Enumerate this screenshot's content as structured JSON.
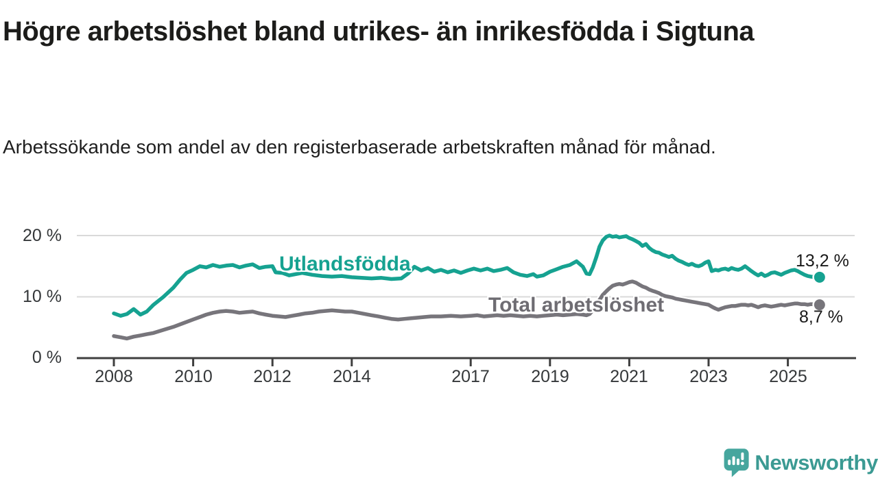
{
  "title": "Högre arbetslöshet bland utrikes- än inrikesfödda i Sigtuna",
  "subtitle": "Arbetssökande som andel av den registerbaserade arbetskraften månad för månad.",
  "branding": {
    "logo_text": "Newsworthy",
    "logo_color": "#46a69e",
    "logo_text_color": "#3b9a93"
  },
  "chart_data": {
    "type": "line",
    "title": "Högre arbetslöshet bland utrikes- än inrikesfödda i Sigtuna",
    "subtitle": "Arbetssökande som andel av den registerbaserade arbetskraften månad för månad.",
    "grid": "horizontal",
    "legend_position": "inline-labels",
    "xlim": [
      2007.1,
      2026.7
    ],
    "ylim": [
      0,
      21
    ],
    "x_axis": {
      "labels": [
        "2008",
        "2010",
        "2012",
        "2014",
        "2017",
        "2019",
        "2021",
        "2023",
        "2025"
      ],
      "values": [
        2008,
        2010,
        2012,
        2014,
        2017,
        2019,
        2021,
        2023,
        2025
      ]
    },
    "y_axis": {
      "labels": [
        "0 %",
        "10 %",
        "20 %"
      ],
      "values": [
        0,
        10,
        20
      ]
    },
    "axis_color": "#3f3f3f",
    "gridline_color": "#d9d9d9",
    "series": [
      {
        "name": "Utlandsfödda",
        "color": "#16a291",
        "end_label": "13,2 %",
        "end_value": 13.2,
        "points": [
          [
            2008.0,
            7.3
          ],
          [
            2008.17,
            6.9
          ],
          [
            2008.33,
            7.2
          ],
          [
            2008.5,
            8.0
          ],
          [
            2008.67,
            7.1
          ],
          [
            2008.83,
            7.6
          ],
          [
            2009.0,
            8.7
          ],
          [
            2009.25,
            10.0
          ],
          [
            2009.5,
            11.5
          ],
          [
            2009.67,
            12.8
          ],
          [
            2009.83,
            13.9
          ],
          [
            2010.0,
            14.4
          ],
          [
            2010.17,
            15.0
          ],
          [
            2010.33,
            14.8
          ],
          [
            2010.5,
            15.2
          ],
          [
            2010.67,
            14.9
          ],
          [
            2010.83,
            15.1
          ],
          [
            2011.0,
            15.2
          ],
          [
            2011.17,
            14.8
          ],
          [
            2011.33,
            15.1
          ],
          [
            2011.5,
            15.3
          ],
          [
            2011.67,
            14.7
          ],
          [
            2011.83,
            14.9
          ],
          [
            2012.0,
            15.0
          ],
          [
            2012.08,
            14.0
          ],
          [
            2012.25,
            13.9
          ],
          [
            2012.42,
            13.5
          ],
          [
            2012.58,
            13.7
          ],
          [
            2012.75,
            13.9
          ],
          [
            2013.0,
            13.6
          ],
          [
            2013.25,
            13.4
          ],
          [
            2013.5,
            13.3
          ],
          [
            2013.75,
            13.4
          ],
          [
            2014.0,
            13.2
          ],
          [
            2014.25,
            13.1
          ],
          [
            2014.5,
            13.0
          ],
          [
            2014.75,
            13.1
          ],
          [
            2015.0,
            12.9
          ],
          [
            2015.25,
            13.0
          ],
          [
            2015.42,
            13.8
          ],
          [
            2015.58,
            14.9
          ],
          [
            2015.75,
            14.3
          ],
          [
            2015.92,
            14.7
          ],
          [
            2016.08,
            14.1
          ],
          [
            2016.25,
            14.4
          ],
          [
            2016.42,
            14.0
          ],
          [
            2016.58,
            14.3
          ],
          [
            2016.75,
            13.9
          ],
          [
            2016.92,
            14.3
          ],
          [
            2017.08,
            14.6
          ],
          [
            2017.25,
            14.3
          ],
          [
            2017.42,
            14.6
          ],
          [
            2017.58,
            14.2
          ],
          [
            2017.75,
            14.4
          ],
          [
            2017.92,
            14.7
          ],
          [
            2018.08,
            14.0
          ],
          [
            2018.25,
            13.6
          ],
          [
            2018.42,
            13.4
          ],
          [
            2018.58,
            13.7
          ],
          [
            2018.67,
            13.3
          ],
          [
            2018.83,
            13.5
          ],
          [
            2019.0,
            14.1
          ],
          [
            2019.17,
            14.5
          ],
          [
            2019.33,
            14.9
          ],
          [
            2019.5,
            15.2
          ],
          [
            2019.67,
            15.8
          ],
          [
            2019.83,
            14.9
          ],
          [
            2019.92,
            13.8
          ],
          [
            2020.0,
            13.7
          ],
          [
            2020.08,
            14.8
          ],
          [
            2020.17,
            16.5
          ],
          [
            2020.25,
            18.2
          ],
          [
            2020.33,
            19.2
          ],
          [
            2020.42,
            19.8
          ],
          [
            2020.5,
            20.0
          ],
          [
            2020.58,
            19.8
          ],
          [
            2020.67,
            19.9
          ],
          [
            2020.75,
            19.7
          ],
          [
            2020.83,
            19.8
          ],
          [
            2020.92,
            19.9
          ],
          [
            2021.0,
            19.6
          ],
          [
            2021.08,
            19.4
          ],
          [
            2021.17,
            19.1
          ],
          [
            2021.25,
            18.8
          ],
          [
            2021.33,
            18.3
          ],
          [
            2021.42,
            18.6
          ],
          [
            2021.5,
            18.0
          ],
          [
            2021.58,
            17.6
          ],
          [
            2021.67,
            17.3
          ],
          [
            2021.75,
            17.2
          ],
          [
            2021.83,
            16.9
          ],
          [
            2021.92,
            16.7
          ],
          [
            2022.0,
            16.5
          ],
          [
            2022.08,
            16.7
          ],
          [
            2022.17,
            16.2
          ],
          [
            2022.25,
            15.9
          ],
          [
            2022.33,
            15.7
          ],
          [
            2022.42,
            15.4
          ],
          [
            2022.5,
            15.2
          ],
          [
            2022.58,
            15.4
          ],
          [
            2022.67,
            15.1
          ],
          [
            2022.75,
            15.0
          ],
          [
            2022.83,
            15.2
          ],
          [
            2022.92,
            15.6
          ],
          [
            2023.0,
            15.8
          ],
          [
            2023.08,
            14.2
          ],
          [
            2023.17,
            14.4
          ],
          [
            2023.25,
            14.3
          ],
          [
            2023.33,
            14.5
          ],
          [
            2023.42,
            14.6
          ],
          [
            2023.5,
            14.4
          ],
          [
            2023.58,
            14.7
          ],
          [
            2023.67,
            14.5
          ],
          [
            2023.75,
            14.4
          ],
          [
            2023.83,
            14.6
          ],
          [
            2023.92,
            15.0
          ],
          [
            2024.0,
            14.6
          ],
          [
            2024.08,
            14.2
          ],
          [
            2024.17,
            13.8
          ],
          [
            2024.25,
            13.5
          ],
          [
            2024.33,
            13.8
          ],
          [
            2024.42,
            13.4
          ],
          [
            2024.5,
            13.6
          ],
          [
            2024.58,
            13.9
          ],
          [
            2024.67,
            14.0
          ],
          [
            2024.75,
            13.8
          ],
          [
            2024.83,
            13.6
          ],
          [
            2024.92,
            13.9
          ],
          [
            2025.0,
            14.1
          ],
          [
            2025.08,
            14.3
          ],
          [
            2025.17,
            14.4
          ],
          [
            2025.25,
            14.2
          ],
          [
            2025.33,
            13.9
          ],
          [
            2025.42,
            13.6
          ],
          [
            2025.5,
            13.4
          ],
          [
            2025.58,
            13.3
          ],
          [
            2025.7,
            13.2
          ],
          [
            2025.8,
            13.2
          ]
        ]
      },
      {
        "name": "Total arbetslöshet",
        "color": "#77757b",
        "end_label": "8,7 %",
        "end_value": 8.7,
        "points": [
          [
            2008.0,
            3.6
          ],
          [
            2008.17,
            3.4
          ],
          [
            2008.33,
            3.2
          ],
          [
            2008.5,
            3.5
          ],
          [
            2008.67,
            3.7
          ],
          [
            2008.83,
            3.9
          ],
          [
            2009.0,
            4.1
          ],
          [
            2009.25,
            4.6
          ],
          [
            2009.5,
            5.1
          ],
          [
            2009.75,
            5.7
          ],
          [
            2010.0,
            6.3
          ],
          [
            2010.17,
            6.7
          ],
          [
            2010.33,
            7.1
          ],
          [
            2010.5,
            7.4
          ],
          [
            2010.67,
            7.6
          ],
          [
            2010.83,
            7.7
          ],
          [
            2011.0,
            7.6
          ],
          [
            2011.17,
            7.4
          ],
          [
            2011.33,
            7.5
          ],
          [
            2011.5,
            7.6
          ],
          [
            2011.67,
            7.3
          ],
          [
            2011.83,
            7.1
          ],
          [
            2012.0,
            6.9
          ],
          [
            2012.17,
            6.8
          ],
          [
            2012.33,
            6.7
          ],
          [
            2012.5,
            6.9
          ],
          [
            2012.67,
            7.1
          ],
          [
            2012.83,
            7.3
          ],
          [
            2013.0,
            7.4
          ],
          [
            2013.17,
            7.6
          ],
          [
            2013.33,
            7.7
          ],
          [
            2013.5,
            7.8
          ],
          [
            2013.67,
            7.7
          ],
          [
            2013.83,
            7.6
          ],
          [
            2014.0,
            7.6
          ],
          [
            2014.17,
            7.4
          ],
          [
            2014.33,
            7.2
          ],
          [
            2014.5,
            7.0
          ],
          [
            2014.67,
            6.8
          ],
          [
            2014.83,
            6.6
          ],
          [
            2015.0,
            6.4
          ],
          [
            2015.17,
            6.3
          ],
          [
            2015.33,
            6.4
          ],
          [
            2015.5,
            6.5
          ],
          [
            2015.67,
            6.6
          ],
          [
            2015.83,
            6.7
          ],
          [
            2016.0,
            6.8
          ],
          [
            2016.25,
            6.8
          ],
          [
            2016.5,
            6.9
          ],
          [
            2016.75,
            6.8
          ],
          [
            2017.0,
            6.9
          ],
          [
            2017.17,
            7.0
          ],
          [
            2017.33,
            6.8
          ],
          [
            2017.5,
            6.9
          ],
          [
            2017.67,
            7.0
          ],
          [
            2017.83,
            6.9
          ],
          [
            2018.0,
            7.0
          ],
          [
            2018.17,
            6.9
          ],
          [
            2018.33,
            6.8
          ],
          [
            2018.5,
            6.9
          ],
          [
            2018.67,
            6.8
          ],
          [
            2018.83,
            6.9
          ],
          [
            2019.0,
            7.0
          ],
          [
            2019.17,
            7.1
          ],
          [
            2019.33,
            7.0
          ],
          [
            2019.5,
            7.1
          ],
          [
            2019.67,
            7.2
          ],
          [
            2019.83,
            7.1
          ],
          [
            2019.92,
            7.0
          ],
          [
            2020.0,
            7.2
          ],
          [
            2020.08,
            7.8
          ],
          [
            2020.17,
            8.6
          ],
          [
            2020.25,
            9.5
          ],
          [
            2020.33,
            10.3
          ],
          [
            2020.42,
            10.9
          ],
          [
            2020.5,
            11.4
          ],
          [
            2020.58,
            11.8
          ],
          [
            2020.67,
            12.0
          ],
          [
            2020.75,
            12.1
          ],
          [
            2020.83,
            12.0
          ],
          [
            2020.92,
            12.2
          ],
          [
            2021.0,
            12.4
          ],
          [
            2021.08,
            12.5
          ],
          [
            2021.17,
            12.3
          ],
          [
            2021.25,
            12.0
          ],
          [
            2021.33,
            11.7
          ],
          [
            2021.42,
            11.5
          ],
          [
            2021.5,
            11.2
          ],
          [
            2021.58,
            11.0
          ],
          [
            2021.67,
            10.8
          ],
          [
            2021.75,
            10.6
          ],
          [
            2021.83,
            10.3
          ],
          [
            2021.92,
            10.1
          ],
          [
            2022.0,
            10.0
          ],
          [
            2022.08,
            9.9
          ],
          [
            2022.17,
            9.7
          ],
          [
            2022.25,
            9.6
          ],
          [
            2022.33,
            9.5
          ],
          [
            2022.42,
            9.4
          ],
          [
            2022.5,
            9.3
          ],
          [
            2022.58,
            9.2
          ],
          [
            2022.67,
            9.1
          ],
          [
            2022.75,
            9.0
          ],
          [
            2022.83,
            8.9
          ],
          [
            2022.92,
            8.8
          ],
          [
            2023.0,
            8.7
          ],
          [
            2023.08,
            8.4
          ],
          [
            2023.17,
            8.1
          ],
          [
            2023.25,
            7.9
          ],
          [
            2023.33,
            8.1
          ],
          [
            2023.42,
            8.3
          ],
          [
            2023.5,
            8.4
          ],
          [
            2023.58,
            8.5
          ],
          [
            2023.67,
            8.5
          ],
          [
            2023.75,
            8.6
          ],
          [
            2023.83,
            8.7
          ],
          [
            2023.92,
            8.7
          ],
          [
            2024.0,
            8.6
          ],
          [
            2024.08,
            8.7
          ],
          [
            2024.17,
            8.5
          ],
          [
            2024.25,
            8.3
          ],
          [
            2024.33,
            8.5
          ],
          [
            2024.42,
            8.6
          ],
          [
            2024.5,
            8.5
          ],
          [
            2024.58,
            8.4
          ],
          [
            2024.67,
            8.5
          ],
          [
            2024.75,
            8.6
          ],
          [
            2024.83,
            8.7
          ],
          [
            2024.92,
            8.6
          ],
          [
            2025.0,
            8.7
          ],
          [
            2025.08,
            8.8
          ],
          [
            2025.17,
            8.9
          ],
          [
            2025.25,
            8.9
          ],
          [
            2025.33,
            8.8
          ],
          [
            2025.42,
            8.8
          ],
          [
            2025.5,
            8.7
          ],
          [
            2025.58,
            8.8
          ],
          [
            2025.7,
            8.8
          ],
          [
            2025.8,
            8.7
          ]
        ]
      }
    ]
  }
}
